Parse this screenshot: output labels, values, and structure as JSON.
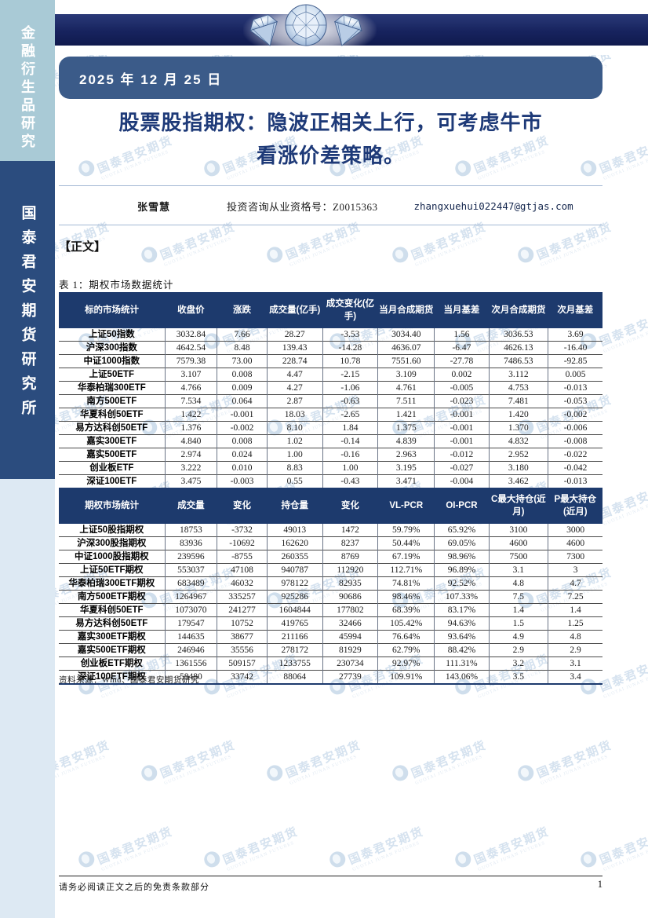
{
  "sidebar": {
    "top_label": "金融衍生品研究",
    "bottom_label": "国泰君安期货研究所"
  },
  "header": {
    "date": "2025 年 12 月 25 日",
    "title_line1": "股票股指期权：隐波正相关上行，可考虑牛市",
    "title_line2": "看涨价差策略。",
    "author_name": "张雪慧",
    "author_qualification": "投资咨询从业资格号：Z0015363",
    "author_email": "zhangxuehui022447@gtjas.com"
  },
  "body": {
    "section_marker": "【正文】",
    "table_caption": "表 1：期权市场数据统计",
    "source_note": "资料来源：Wind、国泰君安期货研究"
  },
  "table": {
    "section1": {
      "headers": [
        "标的市场统计",
        "收盘价",
        "涨跌",
        "成交量(亿手)",
        "成交变化(亿手)",
        "当月合成期货",
        "当月基差",
        "次月合成期货",
        "次月基差"
      ],
      "rows": [
        [
          "上证50指数",
          "3032.84",
          "7.66",
          "28.27",
          "-3.53",
          "3034.40",
          "1.56",
          "3036.53",
          "3.69"
        ],
        [
          "沪深300指数",
          "4642.54",
          "8.48",
          "139.43",
          "-14.28",
          "4636.07",
          "-6.47",
          "4626.13",
          "-16.40"
        ],
        [
          "中证1000指数",
          "7579.38",
          "73.00",
          "228.74",
          "10.78",
          "7551.60",
          "-27.78",
          "7486.53",
          "-92.85"
        ],
        [
          "上证50ETF",
          "3.107",
          "0.008",
          "4.47",
          "-2.15",
          "3.109",
          "0.002",
          "3.112",
          "0.005"
        ],
        [
          "华泰柏瑞300ETF",
          "4.766",
          "0.009",
          "4.27",
          "-1.06",
          "4.761",
          "-0.005",
          "4.753",
          "-0.013"
        ],
        [
          "南方500ETF",
          "7.534",
          "0.064",
          "2.87",
          "-0.63",
          "7.511",
          "-0.023",
          "7.481",
          "-0.053"
        ],
        [
          "华夏科创50ETF",
          "1.422",
          "-0.001",
          "18.03",
          "-2.65",
          "1.421",
          "-0.001",
          "1.420",
          "-0.002"
        ],
        [
          "易方达科创50ETF",
          "1.376",
          "-0.002",
          "8.10",
          "1.84",
          "1.375",
          "-0.001",
          "1.370",
          "-0.006"
        ],
        [
          "嘉实300ETF",
          "4.840",
          "0.008",
          "1.02",
          "-0.14",
          "4.839",
          "-0.001",
          "4.832",
          "-0.008"
        ],
        [
          "嘉实500ETF",
          "2.974",
          "0.024",
          "1.00",
          "-0.16",
          "2.963",
          "-0.012",
          "2.952",
          "-0.022"
        ],
        [
          "创业板ETF",
          "3.222",
          "0.010",
          "8.83",
          "1.00",
          "3.195",
          "-0.027",
          "3.180",
          "-0.042"
        ],
        [
          "深证100ETF",
          "3.475",
          "-0.003",
          "0.55",
          "-0.43",
          "3.471",
          "-0.004",
          "3.462",
          "-0.013"
        ]
      ]
    },
    "section2": {
      "headers": [
        "期权市场统计",
        "成交量",
        "变化",
        "持仓量",
        "变化",
        "VL-PCR",
        "OI-PCR",
        "C最大持仓(近月)",
        "P最大持仓(近月)"
      ],
      "rows": [
        [
          "上证50股指期权",
          "18753",
          "-3732",
          "49013",
          "1472",
          "59.79%",
          "65.92%",
          "3100",
          "3000"
        ],
        [
          "沪深300股指期权",
          "83936",
          "-10692",
          "162620",
          "8237",
          "50.44%",
          "69.05%",
          "4600",
          "4600"
        ],
        [
          "中证1000股指期权",
          "239596",
          "-8755",
          "260355",
          "8769",
          "67.19%",
          "98.96%",
          "7500",
          "7300"
        ],
        [
          "上证50ETF期权",
          "553037",
          "47108",
          "940787",
          "112920",
          "112.71%",
          "96.89%",
          "3.1",
          "3"
        ],
        [
          "华泰柏瑞300ETF期权",
          "683489",
          "46032",
          "978122",
          "82935",
          "74.81%",
          "92.52%",
          "4.8",
          "4.7"
        ],
        [
          "南方500ETF期权",
          "1264967",
          "335257",
          "925286",
          "90686",
          "98.46%",
          "107.33%",
          "7.5",
          "7.25"
        ],
        [
          "华夏科创50ETF",
          "1073070",
          "241277",
          "1604844",
          "177802",
          "68.39%",
          "83.17%",
          "1.4",
          "1.4"
        ],
        [
          "易方达科创50ETF",
          "179547",
          "10752",
          "419765",
          "32466",
          "105.42%",
          "94.63%",
          "1.5",
          "1.25"
        ],
        [
          "嘉实300ETF期权",
          "144635",
          "38677",
          "211166",
          "45994",
          "76.64%",
          "93.64%",
          "4.9",
          "4.8"
        ],
        [
          "嘉实500ETF期权",
          "246946",
          "35556",
          "278172",
          "81929",
          "62.79%",
          "88.42%",
          "2.9",
          "2.9"
        ],
        [
          "创业板ETF期权",
          "1361556",
          "509157",
          "1233755",
          "230734",
          "92.97%",
          "111.31%",
          "3.2",
          "3.1"
        ],
        [
          "深证100ETF期权",
          "58480",
          "33742",
          "88064",
          "27739",
          "109.91%",
          "143.06%",
          "3.5",
          "3.4"
        ]
      ]
    }
  },
  "footer": {
    "disclaimer": "请务必阅读正文之后的免责条款部分",
    "page_number": "1"
  },
  "watermark": {
    "text": "国泰君安期货",
    "subtext": "GUOTAI JUNAN FUTURES"
  },
  "colors": {
    "band_navy": "#17235e",
    "date_box": "#3b5b89",
    "title_blue": "#1e3a78",
    "table_header": "#1d3a6d",
    "sidebar_light": "#a9cad6",
    "sidebar_navy": "#2b4c7e",
    "sidebar_pale": "#dde9f3",
    "watermark_blue": "#b4cbe2"
  }
}
